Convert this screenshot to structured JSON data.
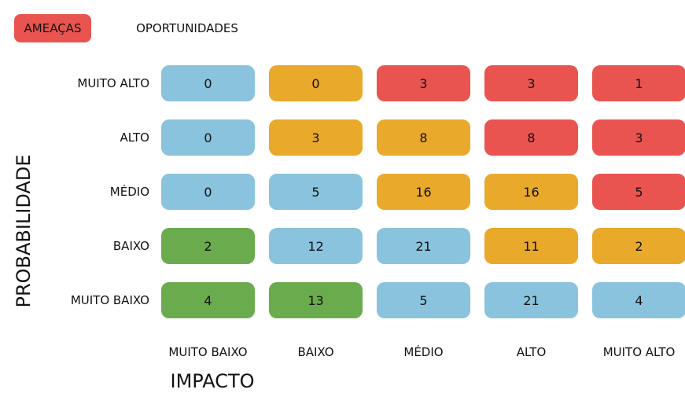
{
  "tabs": [
    {
      "label": "AMEAÇAS",
      "active": true,
      "color": "#ea5450"
    },
    {
      "label": "OPORTUNIDADES",
      "active": false
    }
  ],
  "matrix": {
    "y_title": "PROBABILIDADE",
    "x_title": "IMPACTO",
    "columns": [
      "MUITO BAIXO",
      "BAIXO",
      "MÉDIO",
      "ALTO",
      "MUITO ALTO"
    ],
    "rows": [
      {
        "label": "MUITO ALTO",
        "values": [
          0,
          0,
          3,
          3,
          1
        ],
        "colors": [
          "#8ac3dd",
          "#e9a92a",
          "#ea5450",
          "#ea5450",
          "#ea5450"
        ]
      },
      {
        "label": "ALTO",
        "values": [
          0,
          3,
          8,
          8,
          3
        ],
        "colors": [
          "#8ac3dd",
          "#e9a92a",
          "#e9a92a",
          "#ea5450",
          "#ea5450"
        ]
      },
      {
        "label": "MÉDIO",
        "values": [
          0,
          5,
          16,
          16,
          5
        ],
        "colors": [
          "#8ac3dd",
          "#8ac3dd",
          "#e9a92a",
          "#e9a92a",
          "#ea5450"
        ]
      },
      {
        "label": "BAIXO",
        "values": [
          2,
          12,
          21,
          11,
          2
        ],
        "colors": [
          "#6aab4d",
          "#8ac3dd",
          "#8ac3dd",
          "#e9a92a",
          "#e9a92a"
        ]
      },
      {
        "label": "MUITO BAIXO",
        "values": [
          4,
          13,
          5,
          21,
          4
        ],
        "colors": [
          "#6aab4d",
          "#6aab4d",
          "#8ac3dd",
          "#8ac3dd",
          "#8ac3dd"
        ]
      }
    ]
  }
}
